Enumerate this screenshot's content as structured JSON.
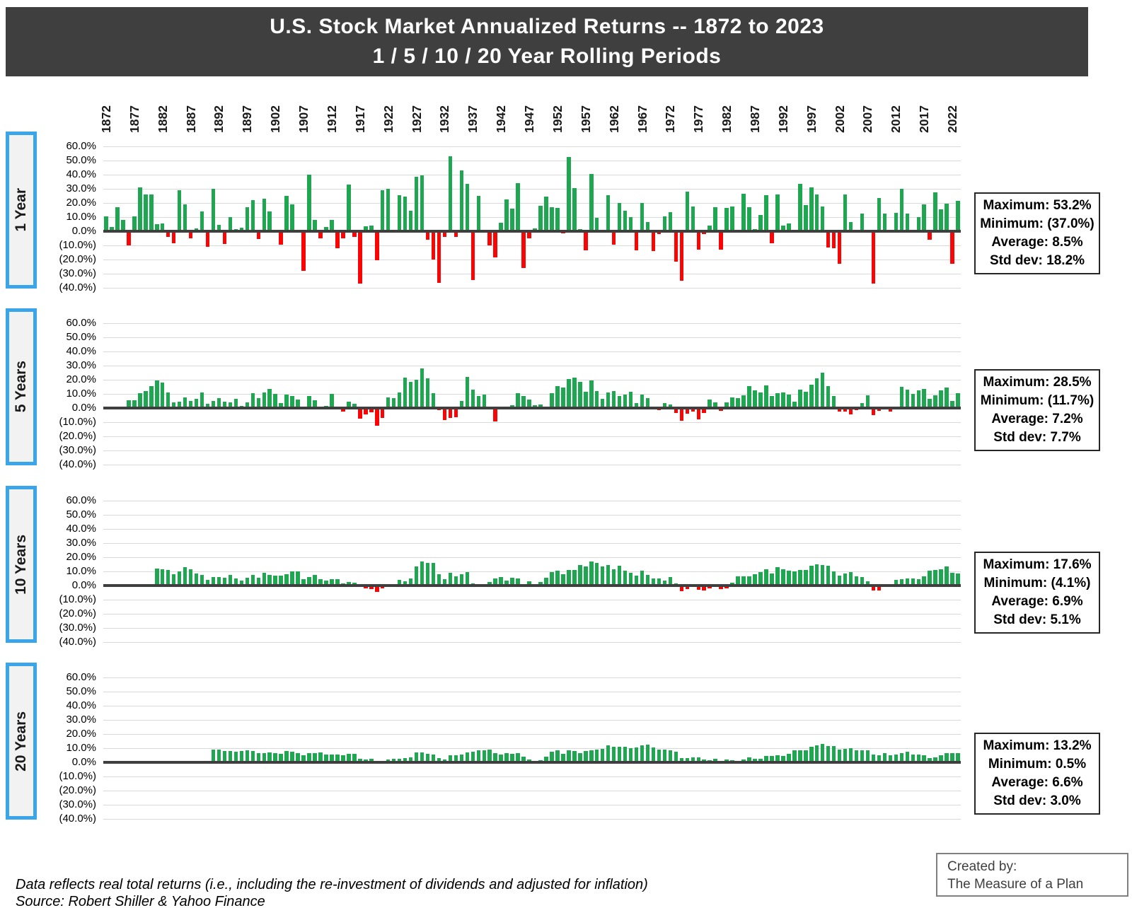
{
  "title": {
    "line1": "U.S. Stock Market Annualized Returns -- 1872 to 2023",
    "line2": "1 / 5 / 10 / 20 Year Rolling Periods"
  },
  "y_axis": {
    "tick_labels": [
      "60.0%",
      "50.0%",
      "40.0%",
      "30.0%",
      "20.0%",
      "10.0%",
      "0.0%",
      "(10.0%)",
      "(20.0%)",
      "(30.0%)",
      "(40.0%)"
    ]
  },
  "panels": [
    {
      "label": "1 Year",
      "window_years": 1,
      "stats_lines": [
        "Maximum: 53.2%",
        "Minimum: (37.0%)",
        "Average: 8.5%",
        "Std dev: 18.2%"
      ]
    },
    {
      "label": "5 Years",
      "window_years": 5,
      "stats_lines": [
        "Maximum: 28.5%",
        "Minimum: (11.7%)",
        "Average: 7.2%",
        "Std dev: 7.7%"
      ]
    },
    {
      "label": "10 Years",
      "window_years": 10,
      "stats_lines": [
        "Maximum: 17.6%",
        "Minimum: (4.1%)",
        "Average: 6.9%",
        "Std dev: 5.1%"
      ]
    },
    {
      "label": "20 Years",
      "window_years": 20,
      "stats_lines": [
        "Maximum: 13.2%",
        "Minimum: 0.5%",
        "Average: 6.6%",
        "Std dev: 3.0%"
      ]
    }
  ],
  "colors": {
    "positive_bar": "#1ea750",
    "negative_bar": "#fa0505",
    "title_bar_bg": "#3f3f3f",
    "accent_blue": "#3aa5e8",
    "gridline": "#d9d9d9",
    "axis_line": "#3f3f3f"
  },
  "footer": {
    "note_line1": "Data reflects real total returns (i.e., including the re-investment of dividends and adjusted for inflation)",
    "note_line2": "Source: Robert Shiller & Yahoo Finance"
  },
  "created_by": {
    "line1": "Created by:",
    "line2": "The Measure of a Plan"
  },
  "chart_data": {
    "type": "bar",
    "title": "U.S. Stock Market Annualized Returns -- 1872 to 2023",
    "subtitle": "1 / 5 / 10 / 20 Year Rolling Periods",
    "x_start_year": 1872,
    "x_end_year": 2023,
    "x_tick_years": [
      1872,
      1877,
      1882,
      1887,
      1892,
      1897,
      1902,
      1907,
      1912,
      1917,
      1922,
      1927,
      1932,
      1937,
      1942,
      1947,
      1952,
      1957,
      1962,
      1967,
      1972,
      1977,
      1982,
      1987,
      1992,
      1997,
      2002,
      2007,
      2012,
      2017,
      2022
    ],
    "ylim": [
      -40,
      60
    ],
    "y_tick_labels": [
      "60.0%",
      "50.0%",
      "40.0%",
      "30.0%",
      "20.0%",
      "10.0%",
      "0.0%",
      "(10.0%)",
      "(20.0%)",
      "(30.0%)",
      "(40.0%)"
    ],
    "grid": true,
    "legend": false,
    "bars_plotted_at": "rolling-period end year; positive bars green, negative bars red",
    "series": [
      {
        "name": "1 Year",
        "window_years": 1,
        "start_year": 1872,
        "values_pct": [
          10.5,
          3,
          17,
          8,
          -10,
          10.5,
          31,
          26,
          26,
          5,
          5.5,
          -4,
          -8.5,
          29,
          19,
          -5,
          2,
          14,
          -11,
          30,
          4.5,
          -9,
          10,
          1.5,
          2.5,
          17,
          22,
          -5.5,
          23,
          14,
          -1,
          -9.5,
          25,
          19,
          1,
          -28,
          40,
          8,
          -5,
          3,
          8,
          -12,
          -5,
          33,
          -4,
          -36.8,
          3.5,
          4,
          -20.5,
          29,
          30,
          0.5,
          25.5,
          24.5,
          14.5,
          38.5,
          39.5,
          -6,
          -20,
          -36.7,
          -4,
          53.2,
          -4,
          43,
          33.5,
          -34.5,
          25,
          1,
          -10,
          -18.5,
          6,
          22.5,
          16,
          34,
          -26,
          -5,
          2,
          18,
          24.5,
          17,
          16.5,
          -1.5,
          52.5,
          30.5,
          1.5,
          -13.7,
          40.5,
          9.5,
          0.5,
          25.5,
          -9.5,
          20,
          14.5,
          10,
          -13.5,
          20,
          6.5,
          -14,
          -2,
          10.5,
          13.5,
          -21.5,
          -35,
          28,
          17.5,
          -13,
          -2,
          4,
          17,
          -13,
          16.5,
          17.5,
          1,
          26.5,
          17,
          1.5,
          11.5,
          25.5,
          -8.5,
          26,
          4,
          5.5,
          -1,
          33.5,
          18.5,
          31,
          26,
          17.5,
          -11.5,
          -12,
          -23,
          26,
          6.5,
          1,
          12.5,
          1,
          -37,
          23.5,
          12.5,
          -1,
          13,
          30,
          12.5,
          -1,
          10,
          19,
          -6,
          27.5,
          15.5,
          19.5,
          -23,
          21.5
        ]
      },
      {
        "name": "5 Years",
        "window_years": 5,
        "derived_from": "annualized geometric mean of trailing 5 one-year values"
      },
      {
        "name": "10 Years",
        "window_years": 10,
        "derived_from": "annualized geometric mean of trailing 10 one-year values"
      },
      {
        "name": "20 Years",
        "window_years": 20,
        "derived_from": "annualized geometric mean of trailing 20 one-year values"
      }
    ]
  }
}
